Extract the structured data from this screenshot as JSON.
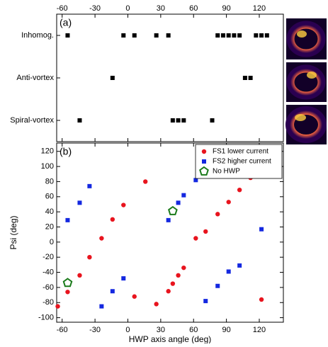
{
  "chart_data": [
    {
      "type": "strip",
      "panel_label": "(a)",
      "rows": [
        {
          "label": "Inhomog.",
          "x": [
            -55,
            -4,
            6,
            26,
            37,
            82,
            87,
            92,
            97,
            102,
            117,
            122,
            127
          ]
        },
        {
          "label": "Anti-vortex",
          "x": [
            -14,
            107,
            112
          ]
        },
        {
          "label": "Spiral-vortex",
          "x": [
            -44,
            41,
            46,
            51,
            77
          ]
        }
      ],
      "color": "#000000",
      "xlim": [
        -65,
        142
      ],
      "xticks": [
        -60,
        -30,
        0,
        30,
        60,
        90,
        120
      ]
    },
    {
      "type": "scatter",
      "panel_label": "(b)",
      "x_label": "HWP axis angle (deg)",
      "y_label": "Psi (deg)",
      "xlim": [
        -65,
        142
      ],
      "xticks": [
        -60,
        -30,
        0,
        30,
        60,
        90,
        120
      ],
      "ylim": [
        -106,
        131
      ],
      "yticks": [
        -100,
        -80,
        -60,
        -40,
        -20,
        0,
        20,
        40,
        60,
        80,
        100,
        120
      ],
      "legend": "upper right",
      "series": [
        {
          "name": "FS1 lower current",
          "color": "#e8141e",
          "marker": "circle",
          "x": [
            -64,
            -55,
            -44,
            -35,
            -24,
            -14,
            -4,
            16,
            6,
            26,
            37,
            41,
            46,
            51,
            62,
            71,
            82,
            92,
            102,
            112,
            122
          ],
          "values": [
            -85,
            -66,
            -44,
            -20,
            5,
            30,
            49,
            80,
            -72,
            -82,
            -65,
            -55,
            -44,
            -34,
            5,
            14,
            37,
            53,
            69,
            85,
            -76
          ]
        },
        {
          "name": "FS2 higher current",
          "color": "#1428e0",
          "marker": "square",
          "x": [
            -55,
            -44,
            -35,
            -24,
            -14,
            -4,
            37,
            46,
            51,
            62,
            71,
            82,
            92,
            102,
            122
          ],
          "values": [
            29,
            52,
            74,
            -85,
            -65,
            -48,
            29,
            52,
            62,
            82,
            -78,
            -58,
            -39,
            -31,
            17
          ]
        },
        {
          "name": "No HWP",
          "color": "#1a7a1a",
          "marker": "pentagon",
          "x": [
            -55,
            41
          ],
          "values": [
            -54,
            41
          ]
        }
      ]
    }
  ]
}
